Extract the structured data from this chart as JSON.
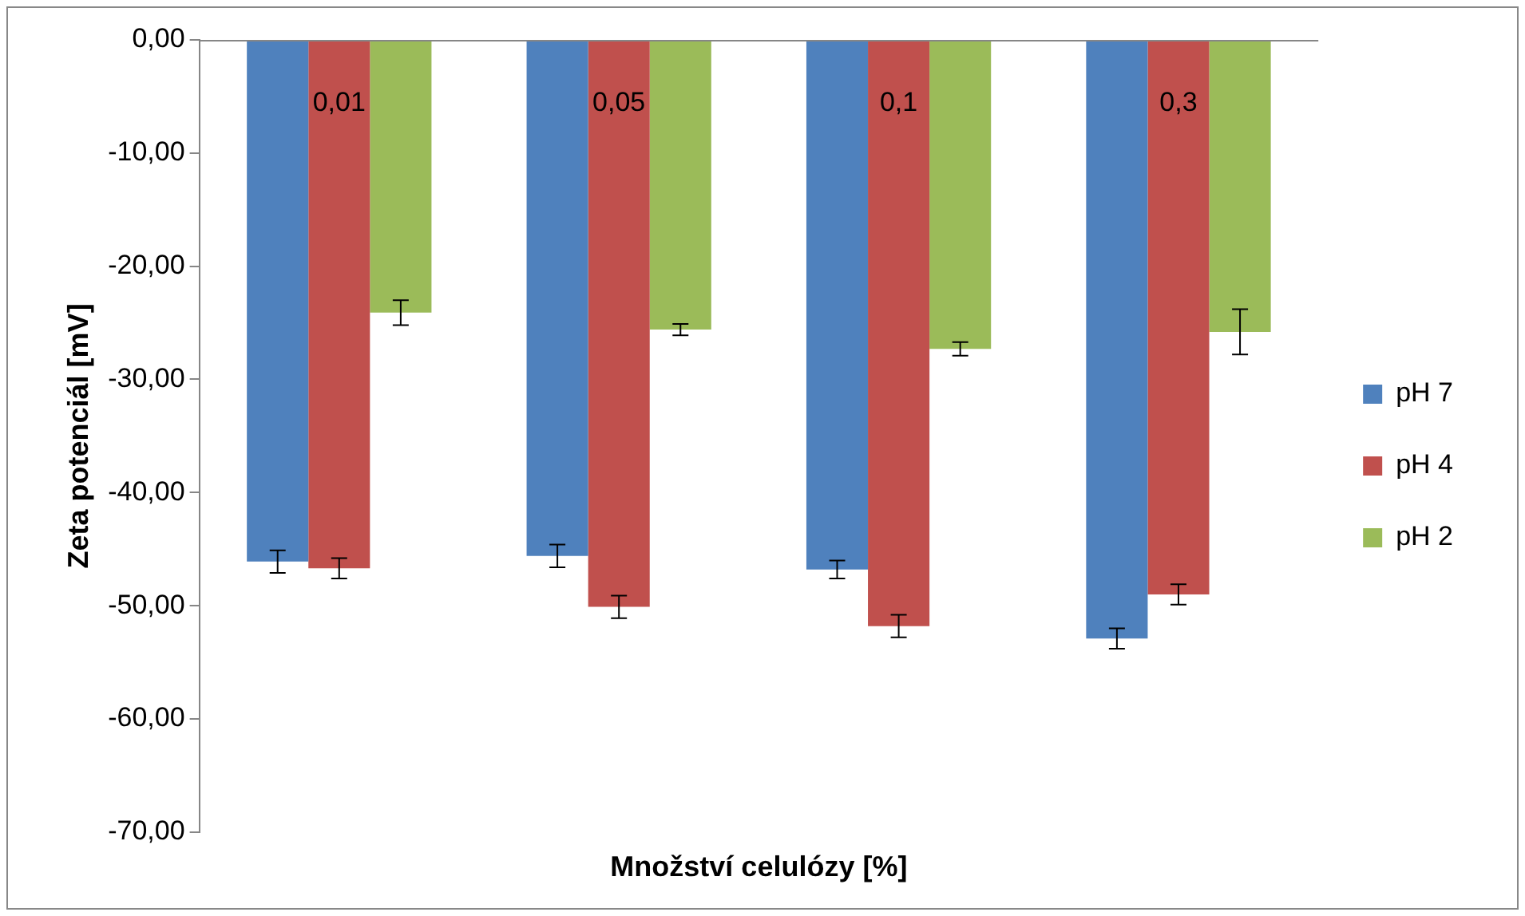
{
  "chart_data": {
    "type": "bar",
    "xlabel": "Množství celulózy [%]",
    "ylabel": "Zeta potenciál [mV]",
    "categories": [
      "0,01",
      "0,05",
      "0,1",
      "0,3"
    ],
    "series": [
      {
        "name": "pH 7",
        "color": "#4f81bd",
        "values": [
          -46.1,
          -45.6,
          -46.8,
          -52.9
        ],
        "errors": [
          1.0,
          1.0,
          0.8,
          0.9
        ]
      },
      {
        "name": "pH 4",
        "color": "#c0504d",
        "values": [
          -46.7,
          -50.1,
          -51.8,
          -49.0
        ],
        "errors": [
          0.9,
          1.0,
          1.0,
          0.9
        ]
      },
      {
        "name": "pH 2",
        "color": "#9bbb59",
        "values": [
          -24.1,
          -25.6,
          -27.3,
          -25.8
        ],
        "errors": [
          1.1,
          0.5,
          0.6,
          2.0
        ]
      }
    ],
    "ylim": [
      -70,
      0
    ],
    "yticks": [
      {
        "value": 0,
        "label": "0,00"
      },
      {
        "value": -10,
        "label": "-10,00"
      },
      {
        "value": -20,
        "label": "-20,00"
      },
      {
        "value": -30,
        "label": "-30,00"
      },
      {
        "value": -40,
        "label": "-40,00"
      },
      {
        "value": -50,
        "label": "-50,00"
      },
      {
        "value": -60,
        "label": "-60,00"
      },
      {
        "value": -70,
        "label": "-70,00"
      }
    ],
    "grid": false,
    "legend": "right"
  }
}
